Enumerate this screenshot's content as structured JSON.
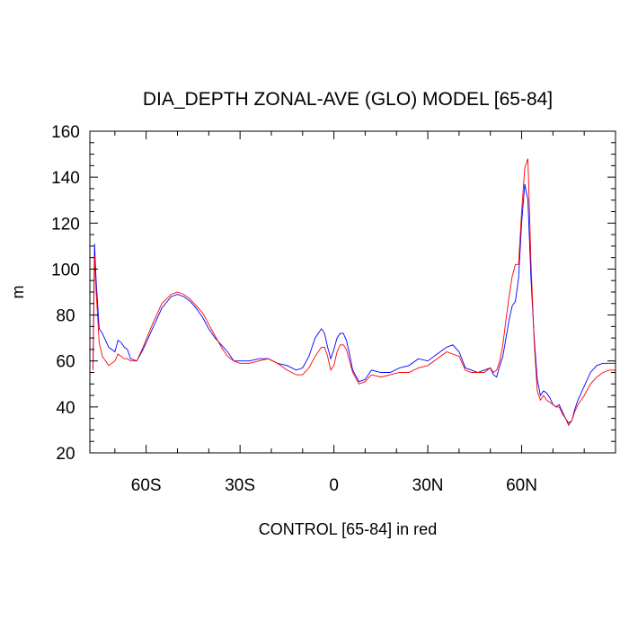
{
  "chart_data": {
    "type": "line",
    "title": "DIA_DEPTH ZONAL-AVE (GLO) MODEL [65-84]",
    "xlabel": "CONTROL [65-84] in red",
    "ylabel": "m",
    "xlim": [
      -78,
      90
    ],
    "ylim": [
      20,
      160
    ],
    "x_ticks": [
      -60,
      -30,
      0,
      30,
      60
    ],
    "x_tick_labels": [
      "60S",
      "30S",
      "0",
      "30N",
      "60N"
    ],
    "y_ticks": [
      20,
      40,
      60,
      80,
      100,
      120,
      140,
      160
    ],
    "y_tick_labels": [
      "20",
      "40",
      "60",
      "80",
      "100",
      "120",
      "140",
      "160"
    ],
    "grid": false,
    "series": [
      {
        "color": "#0000ff",
        "x": [
          -77,
          -76.5,
          -76,
          -75,
          -74,
          -72,
          -70,
          -69,
          -68,
          -67,
          -66,
          -65,
          -63,
          -61,
          -58,
          -55,
          -52,
          -50,
          -48,
          -46,
          -44,
          -42,
          -40,
          -38,
          -36,
          -34,
          -32,
          -30,
          -27,
          -24,
          -21,
          -18,
          -15,
          -12,
          -10,
          -8,
          -6,
          -4,
          -3,
          -2,
          -1,
          0,
          1,
          2,
          3,
          4,
          5,
          6,
          8,
          10,
          12,
          15,
          18,
          21,
          24,
          27,
          30,
          33,
          36,
          38,
          40,
          42,
          44,
          46,
          48,
          50,
          51,
          52,
          53,
          54,
          55,
          56,
          57,
          58,
          59,
          60,
          61,
          62,
          63,
          64,
          65,
          66,
          67,
          68,
          69,
          70,
          71,
          72,
          73,
          74,
          75,
          76,
          77,
          78,
          80,
          82,
          84,
          86,
          88,
          90
        ],
        "y": [
          57,
          111,
          95,
          74,
          72,
          66,
          64,
          69,
          68,
          66,
          65,
          61,
          60,
          65,
          74,
          83,
          88,
          89,
          88,
          86,
          83,
          79,
          74,
          70,
          67,
          64,
          60,
          60,
          60,
          61,
          61,
          59,
          58,
          56,
          57,
          62,
          70,
          74,
          72,
          66,
          61,
          65,
          70,
          72,
          72,
          69,
          63,
          56,
          51,
          52,
          56,
          55,
          55,
          57,
          58,
          61,
          60,
          63,
          66,
          67,
          64,
          57,
          56,
          55,
          56,
          57,
          54,
          53,
          58,
          62,
          70,
          78,
          84,
          86,
          96,
          120,
          137,
          130,
          95,
          70,
          52,
          45,
          47,
          46,
          44,
          41,
          40,
          41,
          38,
          35,
          33,
          34,
          39,
          43,
          49,
          55,
          58,
          59,
          59,
          59
        ]
      },
      {
        "color": "#ff0000",
        "x": [
          -77,
          -76.5,
          -76,
          -75,
          -74,
          -72,
          -70,
          -69,
          -68,
          -67,
          -66,
          -65,
          -63,
          -61,
          -58,
          -55,
          -52,
          -50,
          -48,
          -46,
          -44,
          -42,
          -40,
          -38,
          -36,
          -34,
          -32,
          -30,
          -27,
          -24,
          -21,
          -18,
          -15,
          -12,
          -10,
          -8,
          -6,
          -4,
          -3,
          -2,
          -1,
          0,
          1,
          2,
          3,
          4,
          5,
          6,
          8,
          10,
          12,
          15,
          18,
          21,
          24,
          27,
          30,
          33,
          36,
          38,
          40,
          42,
          44,
          46,
          48,
          50,
          51,
          52,
          53,
          54,
          55,
          56,
          57,
          58,
          59,
          60,
          61,
          62,
          63,
          64,
          65,
          66,
          67,
          68,
          69,
          70,
          71,
          72,
          73,
          74,
          75,
          76,
          77,
          78,
          80,
          82,
          84,
          86,
          88,
          90
        ],
        "y": [
          56,
          106,
          90,
          68,
          62,
          58,
          60,
          63,
          62,
          61,
          61,
          60,
          60,
          66,
          76,
          85,
          89,
          90,
          89,
          87,
          84,
          81,
          76,
          71,
          66,
          62,
          60,
          59,
          59,
          60,
          61,
          59,
          56,
          54,
          54,
          57,
          62,
          66,
          66,
          62,
          56,
          58,
          64,
          67,
          67,
          65,
          60,
          55,
          50,
          51,
          54,
          53,
          54,
          55,
          55,
          57,
          58,
          61,
          64,
          63,
          62,
          56,
          55,
          55,
          55,
          57,
          55,
          56,
          60,
          67,
          78,
          88,
          97,
          102,
          102,
          125,
          144,
          148,
          102,
          68,
          47,
          43,
          45,
          43,
          42,
          41,
          40,
          40,
          37,
          35,
          32,
          34,
          38,
          41,
          45,
          50,
          53,
          55,
          56,
          56
        ]
      }
    ]
  }
}
